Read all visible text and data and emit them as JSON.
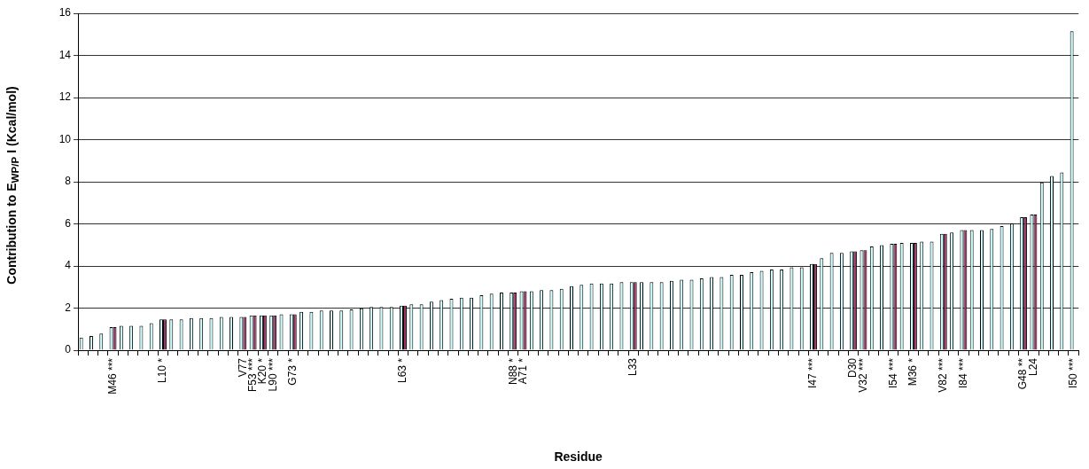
{
  "chart_data": {
    "type": "bar",
    "xlabel": "Residue",
    "ylabel": "Contribution to E$_{WP/P}$ I (Kcal/mol)",
    "categories": [
      null,
      null,
      null,
      "M46 ***",
      null,
      null,
      null,
      null,
      "L10 *",
      null,
      null,
      null,
      null,
      null,
      null,
      null,
      "V77",
      "F53 ***",
      "K20 *",
      "L90 ***",
      null,
      "G73 *",
      null,
      null,
      null,
      null,
      null,
      null,
      null,
      null,
      null,
      null,
      "L63 *",
      null,
      null,
      null,
      null,
      null,
      null,
      null,
      null,
      null,
      null,
      "N88 *",
      "A71 *",
      null,
      null,
      null,
      null,
      null,
      null,
      null,
      null,
      null,
      null,
      "L33",
      null,
      null,
      null,
      null,
      null,
      null,
      null,
      null,
      null,
      null,
      null,
      null,
      null,
      null,
      null,
      null,
      null,
      "I47 ***",
      null,
      null,
      null,
      "D30",
      "V32 ***",
      null,
      null,
      "I54 ***",
      null,
      "M36 *",
      null,
      null,
      "V82 ***",
      null,
      "I84 ***",
      null,
      null,
      null,
      null,
      null,
      "G48 **",
      "L24",
      null,
      null,
      null,
      "I50 ***"
    ],
    "series": [
      {
        "color": "#ccffff",
        "values": [
          0.6,
          0.67,
          0.79,
          1.1,
          1.16,
          1.16,
          1.16,
          1.28,
          1.46,
          1.46,
          1.46,
          1.53,
          1.53,
          1.53,
          1.58,
          1.58,
          1.58,
          1.65,
          1.65,
          1.65,
          1.71,
          1.71,
          1.82,
          1.82,
          1.88,
          1.88,
          1.88,
          1.94,
          1.99,
          2.05,
          2.05,
          2.05,
          2.12,
          2.18,
          2.18,
          2.31,
          2.38,
          2.44,
          2.49,
          2.49,
          2.61,
          2.68,
          2.74,
          2.74,
          2.8,
          2.8,
          2.85,
          2.85,
          2.92,
          3.04,
          3.11,
          3.17,
          3.17,
          3.17,
          3.23,
          3.23,
          3.23,
          3.23,
          3.23,
          3.3,
          3.35,
          3.35,
          3.41,
          3.47,
          3.47,
          3.58,
          3.58,
          3.71,
          3.77,
          3.83,
          3.83,
          3.94,
          3.94,
          4.09,
          4.37,
          4.62,
          4.62,
          4.69,
          4.75,
          4.93,
          4.99,
          5.05,
          5.1,
          5.1,
          5.16,
          5.16,
          5.53,
          5.59,
          5.71,
          5.71,
          5.71,
          5.76,
          5.89,
          6.02,
          6.32,
          6.44,
          7.97,
          8.27,
          8.44,
          15.15
        ]
      },
      {
        "color": "#993366",
        "values": [
          null,
          null,
          null,
          1.1,
          null,
          null,
          null,
          null,
          1.46,
          null,
          null,
          null,
          null,
          null,
          null,
          null,
          1.58,
          1.65,
          1.65,
          1.65,
          null,
          1.71,
          null,
          null,
          null,
          null,
          null,
          null,
          null,
          null,
          null,
          null,
          2.12,
          null,
          null,
          null,
          null,
          null,
          null,
          null,
          null,
          null,
          null,
          2.74,
          2.8,
          null,
          null,
          null,
          null,
          null,
          null,
          null,
          null,
          null,
          null,
          3.23,
          null,
          null,
          null,
          null,
          null,
          null,
          null,
          null,
          null,
          null,
          null,
          null,
          null,
          null,
          null,
          null,
          null,
          4.09,
          null,
          null,
          null,
          4.69,
          4.75,
          null,
          null,
          5.05,
          null,
          5.1,
          null,
          null,
          5.53,
          null,
          5.71,
          null,
          null,
          null,
          null,
          null,
          6.32,
          6.44,
          null,
          null,
          null,
          null
        ]
      }
    ],
    "ylim": [
      0,
      16
    ],
    "yticks": [
      0,
      2,
      4,
      6,
      8,
      10,
      12,
      14,
      16
    ],
    "grid": "y",
    "legend": false
  }
}
